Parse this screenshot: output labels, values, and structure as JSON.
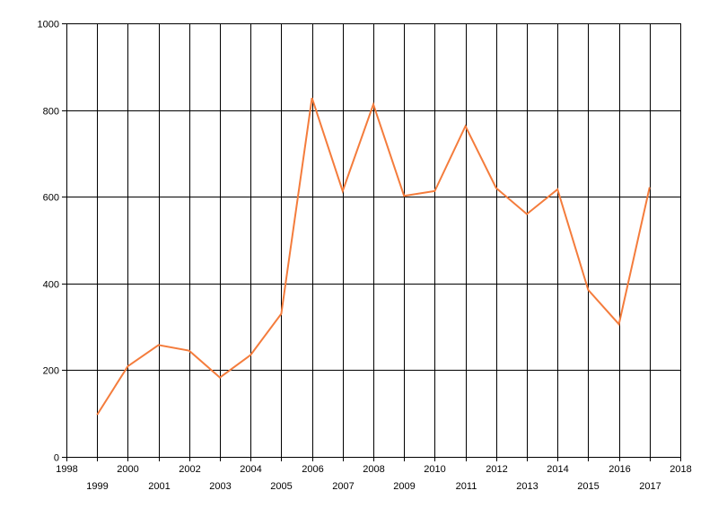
{
  "chart_data": {
    "type": "line",
    "title": "",
    "xlabel": "",
    "ylabel": "",
    "xlim": [
      1998,
      2018
    ],
    "ylim": [
      0,
      1000
    ],
    "x_ticks": [
      1998,
      1999,
      2000,
      2001,
      2002,
      2003,
      2004,
      2005,
      2006,
      2007,
      2008,
      2009,
      2010,
      2011,
      2012,
      2013,
      2014,
      2015,
      2016,
      2017,
      2018
    ],
    "x_tick_labels": [
      "1998",
      "1999",
      "2000",
      "2001",
      "2002",
      "2003",
      "2004",
      "2005",
      "2006",
      "2007",
      "2008",
      "2009",
      "2010",
      "2011",
      "2012",
      "2013",
      "2014",
      "2015",
      "2016",
      "2017",
      "2018"
    ],
    "y_ticks": [
      0,
      200,
      400,
      600,
      800,
      1000
    ],
    "y_tick_labels": [
      "0",
      "200",
      "400",
      "600",
      "800",
      "1000"
    ],
    "grid": true,
    "legend": "none",
    "series": [
      {
        "color": "#f47c3c",
        "x": [
          1999,
          2000,
          2001,
          2002,
          2003,
          2004,
          2005,
          2006,
          2007,
          2008,
          2009,
          2010,
          2011,
          2012,
          2013,
          2014,
          2015,
          2016,
          2017
        ],
        "values": [
          97,
          209,
          258,
          245,
          183,
          235,
          330,
          828,
          613,
          813,
          602,
          613,
          763,
          620,
          560,
          617,
          385,
          306,
          622
        ]
      }
    ]
  }
}
